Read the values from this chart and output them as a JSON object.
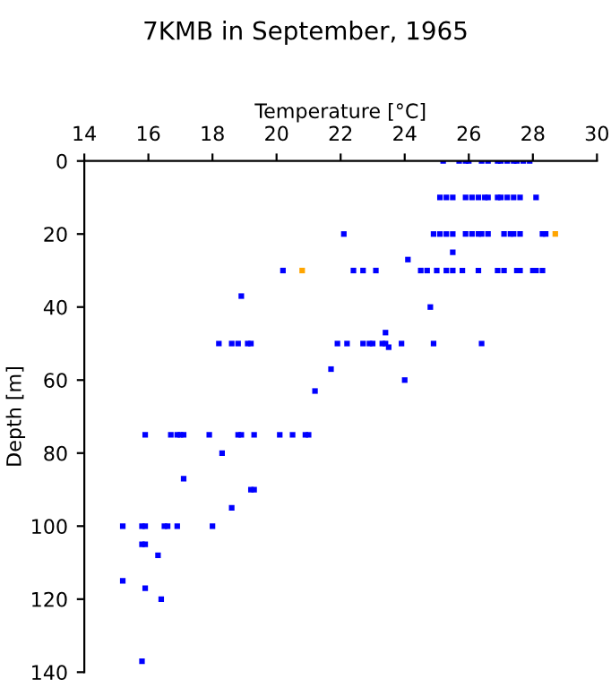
{
  "chart_data": {
    "type": "scatter",
    "title": "7KMB in September, 1965",
    "xlabel": "Temperature [°C]",
    "ylabel": "Depth [m]",
    "xlim": [
      14,
      30
    ],
    "xticks": [
      14,
      16,
      18,
      20,
      22,
      24,
      26,
      28,
      30
    ],
    "ylim": [
      140,
      0
    ],
    "yticks": [
      0,
      20,
      40,
      60,
      80,
      100,
      120,
      140
    ],
    "grid": false,
    "legend": false,
    "marker": "square",
    "series": [
      {
        "color": "#0000ff",
        "x": [
          25.2,
          25.7,
          25.9,
          26.0,
          26.4,
          26.6,
          26.9,
          27.0,
          27.2,
          27.4,
          27.5,
          27.7,
          27.9,
          25.1,
          25.3,
          25.5,
          25.9,
          26.1,
          26.3,
          26.5,
          26.6,
          26.9,
          27.0,
          27.2,
          27.4,
          27.6,
          28.1,
          22.1,
          24.9,
          25.1,
          25.3,
          25.5,
          25.9,
          26.1,
          26.3,
          26.4,
          26.6,
          27.1,
          27.3,
          27.4,
          27.6,
          28.3,
          28.4,
          25.5,
          24.1,
          20.2,
          22.4,
          22.7,
          23.1,
          24.5,
          24.7,
          25.0,
          25.3,
          25.5,
          25.8,
          26.3,
          26.9,
          27.1,
          27.5,
          27.6,
          28.0,
          28.1,
          28.3,
          18.9,
          24.8,
          18.2,
          18.6,
          18.8,
          19.1,
          19.2,
          21.9,
          22.2,
          22.7,
          22.9,
          23.0,
          23.3,
          23.4,
          23.9,
          24.9,
          26.4,
          23.4,
          23.5,
          21.7,
          24.0,
          21.2,
          15.9,
          16.7,
          16.9,
          17.0,
          17.1,
          17.9,
          18.8,
          18.9,
          19.3,
          20.1,
          20.5,
          20.9,
          21.0,
          18.3,
          17.1,
          19.2,
          19.3,
          18.6,
          15.2,
          15.8,
          15.9,
          16.5,
          16.6,
          16.9,
          18.0,
          15.8,
          15.9,
          16.3,
          15.2,
          15.9,
          16.4,
          15.8
        ],
        "values": [
          0,
          0,
          0,
          0,
          0,
          0,
          0,
          0,
          0,
          0,
          0,
          0,
          0,
          10,
          10,
          10,
          10,
          10,
          10,
          10,
          10,
          10,
          10,
          10,
          10,
          10,
          10,
          20,
          20,
          20,
          20,
          20,
          20,
          20,
          20,
          20,
          20,
          20,
          20,
          20,
          20,
          20,
          20,
          25,
          27,
          30,
          30,
          30,
          30,
          30,
          30,
          30,
          30,
          30,
          30,
          30,
          30,
          30,
          30,
          30,
          30,
          30,
          30,
          37,
          40,
          50,
          50,
          50,
          50,
          50,
          50,
          50,
          50,
          50,
          50,
          50,
          50,
          50,
          50,
          50,
          47,
          51,
          57,
          60,
          63,
          75,
          75,
          75,
          75,
          75,
          75,
          75,
          75,
          75,
          75,
          75,
          75,
          75,
          80,
          87,
          90,
          90,
          95,
          100,
          100,
          100,
          100,
          100,
          100,
          100,
          105,
          105,
          108,
          115,
          117,
          120,
          137
        ]
      },
      {
        "color": "#ffa500",
        "x": [
          28.7,
          20.8
        ],
        "values": [
          20,
          30
        ]
      }
    ]
  }
}
